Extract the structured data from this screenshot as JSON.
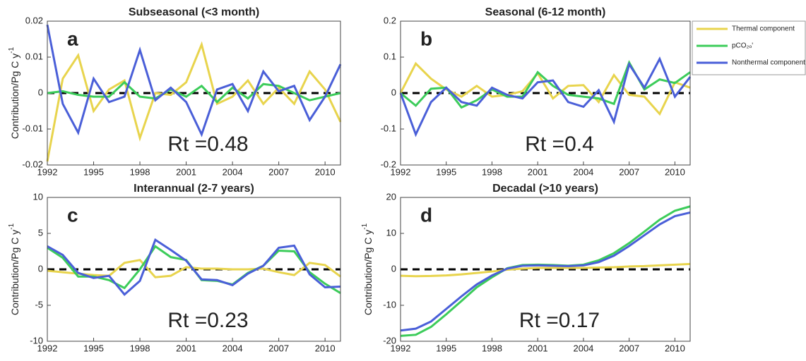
{
  "chart_data": [
    {
      "type": "line",
      "title": "Subseasonal (<3 month)",
      "panel_label": "a",
      "annotation": "Rt =0.48",
      "ylabel": "Contribution/Pg C y",
      "ylabel_sup": "-1",
      "x": [
        1992,
        1993,
        1994,
        1995,
        1996,
        1997,
        1998,
        1999,
        2000,
        2001,
        2002,
        2003,
        2004,
        2005,
        2006,
        2007,
        2008,
        2009,
        2010,
        2011
      ],
      "xlim": [
        1992,
        2011
      ],
      "xticks": [
        1992,
        1995,
        1998,
        2001,
        2004,
        2007,
        2010
      ],
      "ylim": [
        -0.02,
        0.02
      ],
      "yticks": [
        -0.02,
        -0.01,
        0,
        0.01,
        0.02
      ],
      "hline": 0,
      "series": [
        {
          "name": "Thermal component",
          "color": "#e8d44d",
          "values": [
            -0.019,
            0.004,
            0.0105,
            -0.005,
            0.001,
            0.0035,
            -0.0125,
            0.0,
            -0.0005,
            0.003,
            0.0135,
            -0.003,
            -0.001,
            0.0035,
            -0.003,
            0.0015,
            -0.003,
            0.006,
            0.001,
            -0.008
          ]
        },
        {
          "name": "pCO₂ₒ'",
          "color": "#3ccc5a",
          "values": [
            0,
            0.0005,
            -0.0005,
            -0.001,
            -0.001,
            0.003,
            -0.001,
            -0.0015,
            0.001,
            -0.001,
            0.002,
            -0.0025,
            0.0015,
            -0.0015,
            0.0025,
            0.002,
            0.0,
            -0.002,
            -0.001,
            0.0
          ]
        },
        {
          "name": "Nonthermal component",
          "color": "#4a5fd8",
          "values": [
            0.019,
            -0.003,
            -0.011,
            0.004,
            -0.0025,
            -0.001,
            0.012,
            -0.002,
            0.0015,
            -0.0025,
            -0.0115,
            0.001,
            0.0025,
            -0.005,
            0.006,
            0.0005,
            0.002,
            -0.0075,
            -0.001,
            0.008
          ]
        }
      ]
    },
    {
      "type": "line",
      "title": "Seasonal (6-12 month)",
      "panel_label": "b",
      "annotation": "Rt =0.4",
      "x": [
        1992,
        1993,
        1994,
        1995,
        1996,
        1997,
        1998,
        1999,
        2000,
        2001,
        2002,
        2003,
        2004,
        2005,
        2006,
        2007,
        2008,
        2009,
        2010,
        2011
      ],
      "xlim": [
        1992,
        2011
      ],
      "xticks": [
        1992,
        1995,
        1998,
        2001,
        2004,
        2007,
        2010
      ],
      "ylim": [
        -0.2,
        0.2
      ],
      "yticks": [
        -0.2,
        -0.1,
        0,
        0.1,
        0.2
      ],
      "hline": 0,
      "series": [
        {
          "name": "Thermal component",
          "color": "#e8d44d",
          "values": [
            0,
            0.082,
            0.04,
            0.01,
            -0.01,
            0.02,
            -0.01,
            -0.005,
            0.005,
            0.055,
            -0.015,
            0.02,
            0.022,
            -0.025,
            0.05,
            -0.005,
            -0.01,
            -0.058,
            0.03,
            0.015
          ]
        },
        {
          "name": "pCO₂ₒ'",
          "color": "#3ccc5a",
          "values": [
            0,
            -0.035,
            0.012,
            0.015,
            -0.04,
            -0.02,
            0.01,
            -0.01,
            -0.01,
            0.058,
            0.02,
            -0.005,
            -0.01,
            -0.015,
            -0.03,
            0.085,
            0.01,
            0.038,
            0.028,
            0.058
          ]
        },
        {
          "name": "Nonthermal component",
          "color": "#4a5fd8",
          "values": [
            0,
            -0.115,
            -0.025,
            0.015,
            -0.025,
            -0.035,
            0.015,
            -0.005,
            -0.015,
            0.03,
            0.035,
            -0.025,
            -0.038,
            0.008,
            -0.08,
            0.08,
            0.015,
            0.095,
            -0.01,
            0.045
          ]
        }
      ]
    },
    {
      "type": "line",
      "title": "Interannual (2-7 years)",
      "panel_label": "c",
      "annotation": "Rt =0.23",
      "ylabel": "Contribution/Pg C y",
      "ylabel_sup": "-1",
      "x": [
        1992,
        1993,
        1994,
        1995,
        1996,
        1997,
        1998,
        1999,
        2000,
        2001,
        2002,
        2003,
        2004,
        2005,
        2006,
        2007,
        2008,
        2009,
        2010,
        2011
      ],
      "xlim": [
        1992,
        2011
      ],
      "xticks": [
        1992,
        1995,
        1998,
        2001,
        2004,
        2007,
        2010
      ],
      "ylim": [
        -10,
        10
      ],
      "yticks": [
        -10,
        -5,
        0,
        5,
        10
      ],
      "hline": 0,
      "series": [
        {
          "name": "Thermal component",
          "color": "#e8d44d",
          "values": [
            -0.2,
            -0.4,
            -0.6,
            -0.8,
            -0.9,
            0.9,
            1.3,
            -1.1,
            -0.9,
            0.3,
            0.1,
            0.1,
            0,
            0,
            0.1,
            -0.4,
            -0.8,
            0.9,
            0.6,
            -1.0
          ]
        },
        {
          "name": "pCO₂ₒ'",
          "color": "#3ccc5a",
          "values": [
            3.0,
            1.6,
            -1.0,
            -1.0,
            -1.5,
            -2.6,
            0,
            3.2,
            1.7,
            1.3,
            -1.5,
            -1.6,
            -2.1,
            -0.5,
            0.5,
            2.6,
            2.5,
            -0.4,
            -2.0,
            -3.3
          ]
        },
        {
          "name": "Nonthermal component",
          "color": "#4a5fd8",
          "values": [
            3.2,
            2.0,
            -0.5,
            -1.2,
            -0.9,
            -3.5,
            -1.6,
            4.1,
            2.7,
            1.2,
            -1.4,
            -1.5,
            -2.2,
            -0.6,
            0.5,
            3.0,
            3.3,
            -0.7,
            -2.5,
            -2.4
          ]
        }
      ]
    },
    {
      "type": "line",
      "title": "Decadal (>10 years)",
      "panel_label": "d",
      "annotation": "Rt =0.17",
      "ylabel": "Contribution/Pg C y",
      "ylabel_sup": "-1",
      "x": [
        1992,
        1993,
        1994,
        1995,
        1996,
        1997,
        1998,
        1999,
        2000,
        2001,
        2002,
        2003,
        2004,
        2005,
        2006,
        2007,
        2008,
        2009,
        2010,
        2011
      ],
      "xlim": [
        1992,
        2011
      ],
      "xticks": [
        1992,
        1995,
        1998,
        2001,
        2004,
        2007,
        2010
      ],
      "ylim": [
        -20,
        20
      ],
      "yticks": [
        -20,
        -10,
        0,
        10,
        20
      ],
      "hline": 0,
      "series": [
        {
          "name": "Thermal component",
          "color": "#e8d44d",
          "values": [
            -1.8,
            -1.9,
            -1.85,
            -1.7,
            -1.4,
            -1.0,
            -0.6,
            -0.1,
            0.2,
            0.4,
            0.4,
            0.4,
            0.4,
            0.5,
            0.6,
            0.8,
            0.9,
            1.1,
            1.3,
            1.5
          ]
        },
        {
          "name": "pCO₂ₒ'",
          "color": "#3ccc5a",
          "values": [
            -18.5,
            -18.2,
            -16.0,
            -12.5,
            -8.8,
            -5.0,
            -2.2,
            0.3,
            1.2,
            1.3,
            1.2,
            1.0,
            1.3,
            2.5,
            4.5,
            7.3,
            10.5,
            13.8,
            16.3,
            17.5
          ]
        },
        {
          "name": "Nonthermal component",
          "color": "#4a5fd8",
          "values": [
            -17,
            -16.5,
            -14.5,
            -11,
            -7.5,
            -4.2,
            -1.7,
            0.2,
            1.0,
            1.1,
            1.0,
            0.9,
            1.1,
            2.0,
            3.8,
            6.5,
            9.5,
            12.5,
            14.8,
            15.8
          ]
        }
      ]
    }
  ]
}
